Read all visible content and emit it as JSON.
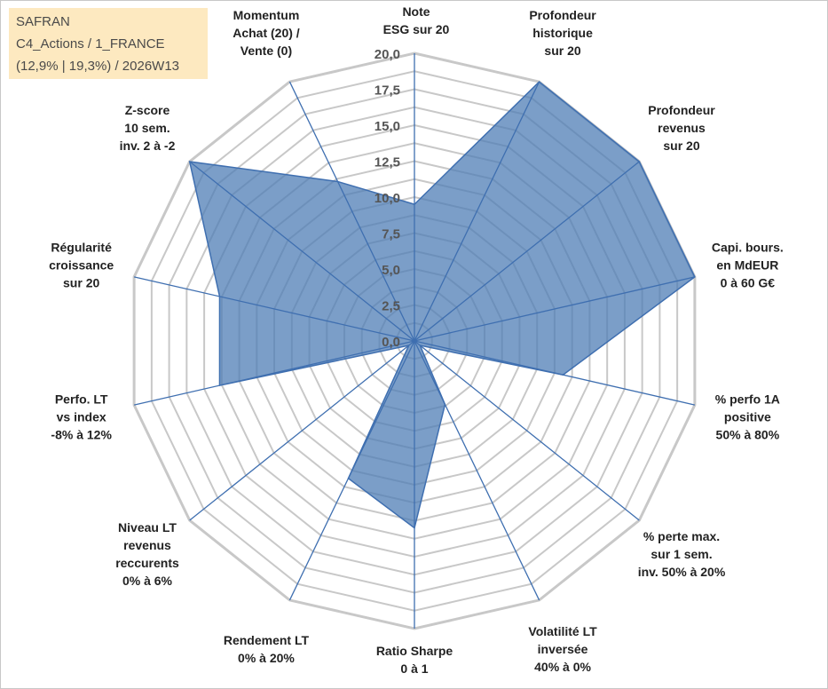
{
  "info": {
    "line1": "SAFRAN",
    "line2": "C4_Actions / 1_FRANCE",
    "line3": "(12,9% | 19,3%) / 2026W13"
  },
  "colors": {
    "fill": "#4f7db5",
    "stroke": "#3f6fb0",
    "spoke": "#3f6fb0",
    "grid": "#c8c8c8",
    "infoBox": "#fde9c0"
  },
  "chart_data": {
    "type": "radar",
    "title": "SAFRAN",
    "rlim": [
      0,
      20
    ],
    "ticks": [
      "0,0",
      "2,5",
      "5,0",
      "7,5",
      "10,0",
      "12,5",
      "15,0",
      "17,5",
      "20,0"
    ],
    "tick_values": [
      0,
      2.5,
      5,
      7.5,
      10,
      12.5,
      15,
      17.5,
      20
    ],
    "grid": true,
    "categories": [
      [
        "Note",
        "ESG sur 20"
      ],
      [
        "Profondeur",
        "historique",
        "sur 20"
      ],
      [
        "Profondeur",
        "revenus",
        "sur 20"
      ],
      [
        "Capi. bours.",
        "en MdEUR",
        "0 à 60 G€"
      ],
      [
        "% perfo 1A",
        "positive",
        "50% à 80%"
      ],
      [
        "% perte max.",
        "sur 1 sem.",
        "inv. 50% à 20%"
      ],
      [
        "Volatilité LT",
        "inversée",
        "40% à 0%"
      ],
      [
        "Ratio Sharpe",
        "0 à 1"
      ],
      [
        "Rendement LT",
        "0% à 20%"
      ],
      [
        "Niveau LT",
        "revenus",
        "reccurents",
        "0% à 6%"
      ],
      [
        "Perfo. LT",
        "vs index",
        "-8% à 12%"
      ],
      [
        "Régularité",
        "croissance",
        "sur 20"
      ],
      [
        "Z-score",
        "10 sem.",
        "inv. 2 à -2"
      ],
      [
        "Momentum",
        "Achat (20) /",
        "Vente (0)"
      ]
    ],
    "series": [
      {
        "name": "SAFRAN",
        "values": [
          9.5,
          20,
          20,
          20,
          10.6,
          0.5,
          4.9,
          13,
          10.6,
          0.5,
          13.9,
          13.9,
          20,
          12.3
        ]
      }
    ]
  }
}
